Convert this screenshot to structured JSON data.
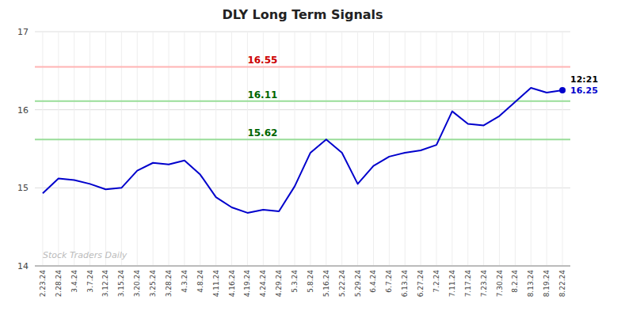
{
  "chart_data": {
    "type": "line",
    "title": "DLY Long Term Signals",
    "color": "#0000cc",
    "grid": true,
    "categories": [
      "2.23.24",
      "2.28.24",
      "3.4.24",
      "3.7.24",
      "3.12.24",
      "3.15.24",
      "3.20.24",
      "3.25.24",
      "3.28.24",
      "4.3.24",
      "4.8.24",
      "4.11.24",
      "4.16.24",
      "4.19.24",
      "4.24.24",
      "4.29.24",
      "5.3.24",
      "5.8.24",
      "5.16.24",
      "5.22.24",
      "5.29.24",
      "6.4.24",
      "6.7.24",
      "6.13.24",
      "6.27.24",
      "7.2.24",
      "7.11.24",
      "7.17.24",
      "7.23.24",
      "7.30.24",
      "8.2.24",
      "8.13.24",
      "8.19.24",
      "8.22.24"
    ],
    "values": [
      14.93,
      15.12,
      15.1,
      15.05,
      14.98,
      15.0,
      15.22,
      15.32,
      15.3,
      15.35,
      15.17,
      14.88,
      14.75,
      14.68,
      14.72,
      14.7,
      15.02,
      15.45,
      15.62,
      15.45,
      15.05,
      15.28,
      15.4,
      15.45,
      15.48,
      15.55,
      15.98,
      15.82,
      15.8,
      15.92,
      16.1,
      16.28,
      16.22,
      16.25
    ],
    "ylim": [
      14.0,
      17.0
    ],
    "yticks": [
      14,
      15,
      16,
      17
    ],
    "reference_lines": [
      {
        "value": 16.55,
        "label": "16.55",
        "color": "#ffb3b3",
        "label_color": "#cc0000"
      },
      {
        "value": 16.11,
        "label": "16.11",
        "color": "#99dd99",
        "label_color": "#006600"
      },
      {
        "value": 15.62,
        "label": "15.62",
        "color": "#99dd99",
        "label_color": "#006600"
      }
    ],
    "annotations": [
      {
        "text": "12:21",
        "color": "#000000"
      },
      {
        "text": "16.25",
        "value": 16.25,
        "color": "#0000cc"
      }
    ],
    "watermark": "Stock Traders Daily"
  }
}
